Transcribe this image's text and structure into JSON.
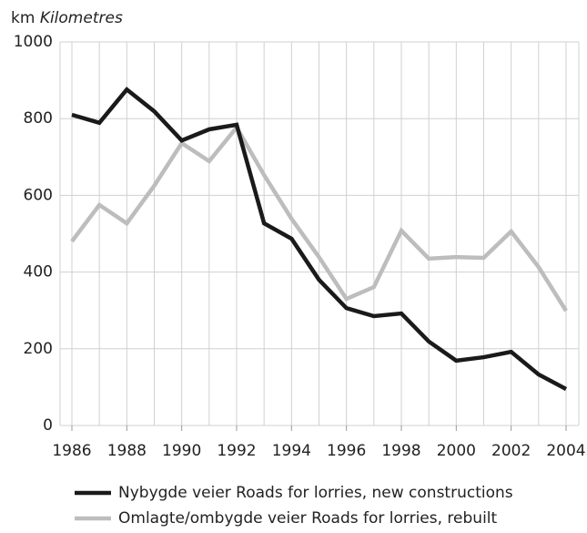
{
  "chart_data": {
    "type": "line",
    "unit": "km",
    "unit_label": "Kilometres",
    "x": [
      1986,
      1987,
      1988,
      1989,
      1990,
      1991,
      1992,
      1993,
      1994,
      1995,
      1996,
      1997,
      1998,
      1999,
      2000,
      2001,
      2002,
      2003,
      2004
    ],
    "series": [
      {
        "name": "Nybygde veier Roads for lorries, new constructions",
        "color": "#1a1a1a",
        "values": [
          810,
          789,
          876,
          819,
          743,
          772,
          784,
          527,
          487,
          380,
          306,
          285,
          292,
          219,
          169,
          178,
          192,
          133,
          95
        ]
      },
      {
        "name": "Omlagte/ombygde veier Roads for lorries, rebuilt",
        "color": "#bdbdbd",
        "values": [
          480,
          575,
          527,
          625,
          736,
          689,
          777,
          653,
          539,
          439,
          330,
          361,
          508,
          435,
          439,
          437,
          506,
          413,
          299
        ]
      }
    ],
    "xlim": [
      1986,
      2004
    ],
    "xticks": [
      1986,
      1988,
      1990,
      1992,
      1994,
      1996,
      1998,
      2000,
      2002,
      2004
    ],
    "ylim": [
      0,
      1000
    ],
    "yticks": [
      0,
      200,
      400,
      600,
      800,
      1000
    ],
    "grid": true
  }
}
